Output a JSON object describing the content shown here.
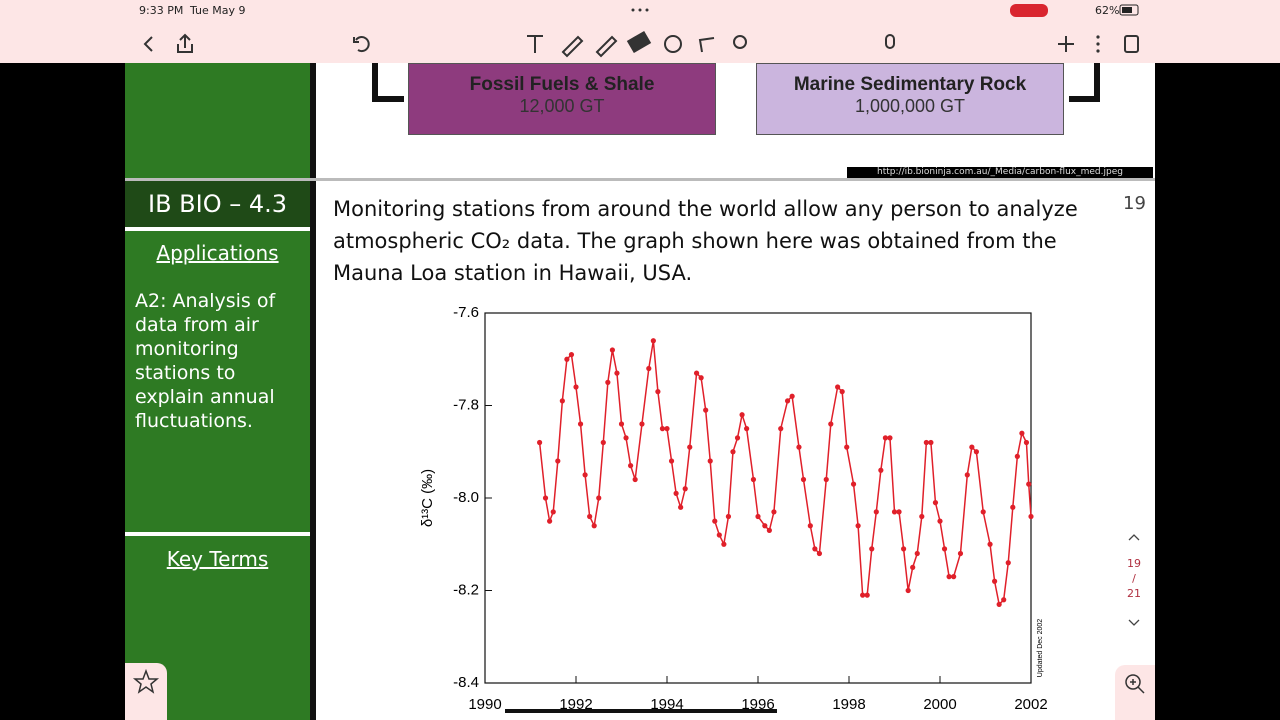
{
  "status_bar": {
    "time": "9:33 PM",
    "date": "Tue May 9",
    "battery": "62%"
  },
  "top_slide": {
    "boxes": [
      {
        "title": "Fossil Fuels & Shale",
        "amount": "12,000 GT"
      },
      {
        "title": "Marine Sedimentary Rock",
        "amount": "1,000,000 GT"
      }
    ],
    "source": "http://ib.bioninja.com.au/_Media/carbon-flux_med.jpeg"
  },
  "slide": {
    "title": "IB BIO – 4.3",
    "section": "Applications",
    "objective": "A2: Analysis of data from air monitoring stations to explain annual fluctuations.",
    "key_terms": "Key Terms",
    "page_number": "19",
    "paragraph": "Monitoring stations from around the world allow any person to analyze atmospheric CO₂ data.  The graph shown here was obtained from the Mauna Loa station in Hawaii, USA."
  },
  "pager": {
    "current": "19",
    "separator": "/",
    "total": "21"
  },
  "chart_data": {
    "type": "line",
    "y_label": "δ¹³C (‰)",
    "annotation": "Updated Dec 2002",
    "color": "#e0202a",
    "xlim": [
      1990,
      2002
    ],
    "xticks": [
      1990,
      1992,
      1994,
      1996,
      1998,
      2000,
      2002
    ],
    "ylim": [
      -8.4,
      -7.6
    ],
    "yticks": [
      -7.6,
      -7.8,
      {
        "value": -8,
        "label": "-8.0"
      },
      -8.2,
      -8.4
    ],
    "series": [
      {
        "x": [
          1991.2,
          1991.33,
          1991.42,
          1991.5,
          1991.6,
          1991.7,
          1991.8,
          1991.9,
          1992.0,
          1992.1,
          1992.2,
          1992.3,
          1992.4,
          1992.5,
          1992.6,
          1992.7,
          1992.8,
          1992.9,
          1993.0,
          1993.1,
          1993.2,
          1993.3,
          1993.45,
          1993.6,
          1993.7,
          1993.8,
          1993.9,
          1994.0,
          1994.1,
          1994.2,
          1994.3,
          1994.4,
          1994.5,
          1994.65,
          1994.75,
          1994.85,
          1994.95,
          1995.05,
          1995.15,
          1995.25,
          1995.35,
          1995.45,
          1995.55,
          1995.65,
          1995.75,
          1995.9,
          1996.0,
          1996.15,
          1996.25,
          1996.35,
          1996.5,
          1996.65,
          1996.75,
          1996.9,
          1997.0,
          1997.15,
          1997.25,
          1997.35,
          1997.5,
          1997.6,
          1997.75,
          1997.85,
          1997.95,
          1998.1,
          1998.2,
          1998.3,
          1998.4,
          1998.5,
          1998.6,
          1998.7,
          1998.8,
          1998.9,
          1999.0,
          1999.1,
          1999.2,
          1999.3,
          1999.4,
          1999.5,
          1999.6,
          1999.7,
          1999.8,
          1999.9,
          2000.0,
          2000.1,
          2000.2,
          2000.3,
          2000.45,
          2000.6,
          2000.7,
          2000.8,
          2000.95,
          2001.1,
          2001.2,
          2001.3,
          2001.4,
          2001.5,
          2001.6,
          2001.7,
          2001.8,
          2001.9,
          2001.95,
          2002.0
        ],
        "values": [
          -7.88,
          -8.0,
          -8.05,
          -8.03,
          -7.92,
          -7.79,
          -7.7,
          -7.69,
          -7.76,
          -7.84,
          -7.95,
          -8.04,
          -8.06,
          -8.0,
          -7.88,
          -7.75,
          -7.68,
          -7.73,
          -7.84,
          -7.87,
          -7.93,
          -7.96,
          -7.84,
          -7.72,
          -7.66,
          -7.77,
          -7.85,
          -7.85,
          -7.92,
          -7.99,
          -8.02,
          -7.98,
          -7.89,
          -7.73,
          -7.74,
          -7.81,
          -7.92,
          -8.05,
          -8.08,
          -8.1,
          -8.04,
          -7.9,
          -7.87,
          -7.82,
          -7.85,
          -7.96,
          -8.04,
          -8.06,
          -8.07,
          -8.03,
          -7.85,
          -7.79,
          -7.78,
          -7.89,
          -7.96,
          -8.06,
          -8.11,
          -8.12,
          -7.96,
          -7.84,
          -7.76,
          -7.77,
          -7.89,
          -7.97,
          -8.06,
          -8.21,
          -8.21,
          -8.11,
          -8.03,
          -7.94,
          -7.87,
          -7.87,
          -8.03,
          -8.03,
          -8.11,
          -8.2,
          -8.15,
          -8.12,
          -8.04,
          -7.88,
          -7.88,
          -8.01,
          -8.05,
          -8.11,
          -8.17,
          -8.17,
          -8.12,
          -7.95,
          -7.89,
          -7.9,
          -8.03,
          -8.1,
          -8.18,
          -8.23,
          -8.22,
          -8.14,
          -8.02,
          -7.91,
          -7.86,
          -7.88,
          -7.97,
          -8.04
        ]
      }
    ]
  }
}
